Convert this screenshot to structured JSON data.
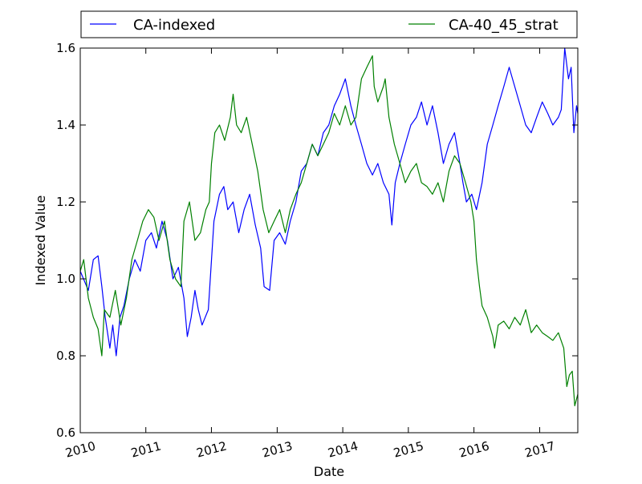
{
  "chart_data": {
    "type": "line",
    "title": "",
    "xlabel": "Date",
    "ylabel": "Indexed Value",
    "xlim": [
      "2010-01-01",
      "2017-08-01"
    ],
    "ylim": [
      0.6,
      1.6
    ],
    "x_ticks": [
      "2010",
      "2011",
      "2012",
      "2013",
      "2014",
      "2015",
      "2016",
      "2017"
    ],
    "y_ticks": [
      "0.6",
      "0.8",
      "1.0",
      "1.2",
      "1.4",
      "1.6"
    ],
    "grid": false,
    "legend": {
      "placement": "top, above plot",
      "columns": 2
    },
    "series": [
      {
        "name": "CA-indexed",
        "color": "#0000ff",
        "points": [
          [
            "2010-01-01",
            1.02
          ],
          [
            "2010-02-15",
            0.97
          ],
          [
            "2010-03-15",
            1.05
          ],
          [
            "2010-04-10",
            1.06
          ],
          [
            "2010-05-01",
            0.98
          ],
          [
            "2010-05-20",
            0.9
          ],
          [
            "2010-06-15",
            0.82
          ],
          [
            "2010-07-01",
            0.88
          ],
          [
            "2010-07-20",
            0.8
          ],
          [
            "2010-08-10",
            0.9
          ],
          [
            "2010-09-01",
            0.93
          ],
          [
            "2010-10-01",
            1.0
          ],
          [
            "2010-11-01",
            1.05
          ],
          [
            "2010-12-01",
            1.02
          ],
          [
            "2011-01-01",
            1.1
          ],
          [
            "2011-02-01",
            1.12
          ],
          [
            "2011-03-01",
            1.08
          ],
          [
            "2011-04-01",
            1.15
          ],
          [
            "2011-05-01",
            1.1
          ],
          [
            "2011-06-01",
            1.0
          ],
          [
            "2011-07-01",
            1.03
          ],
          [
            "2011-08-01",
            0.95
          ],
          [
            "2011-08-20",
            0.85
          ],
          [
            "2011-09-10",
            0.9
          ],
          [
            "2011-10-01",
            0.97
          ],
          [
            "2011-10-20",
            0.92
          ],
          [
            "2011-11-10",
            0.88
          ],
          [
            "2011-12-15",
            0.92
          ],
          [
            "2012-01-15",
            1.15
          ],
          [
            "2012-02-15",
            1.22
          ],
          [
            "2012-03-10",
            1.24
          ],
          [
            "2012-04-01",
            1.18
          ],
          [
            "2012-05-01",
            1.2
          ],
          [
            "2012-06-01",
            1.12
          ],
          [
            "2012-07-01",
            1.18
          ],
          [
            "2012-08-01",
            1.22
          ],
          [
            "2012-09-01",
            1.14
          ],
          [
            "2012-10-01",
            1.08
          ],
          [
            "2012-10-20",
            0.98
          ],
          [
            "2012-11-20",
            0.97
          ],
          [
            "2012-12-15",
            1.1
          ],
          [
            "2013-01-15",
            1.12
          ],
          [
            "2013-02-15",
            1.09
          ],
          [
            "2013-03-15",
            1.15
          ],
          [
            "2013-04-15",
            1.2
          ],
          [
            "2013-05-15",
            1.28
          ],
          [
            "2013-06-15",
            1.3
          ],
          [
            "2013-07-15",
            1.35
          ],
          [
            "2013-08-15",
            1.32
          ],
          [
            "2013-09-15",
            1.38
          ],
          [
            "2013-10-15",
            1.4
          ],
          [
            "2013-11-15",
            1.45
          ],
          [
            "2013-12-15",
            1.48
          ],
          [
            "2014-01-15",
            1.52
          ],
          [
            "2014-02-15",
            1.45
          ],
          [
            "2014-03-15",
            1.4
          ],
          [
            "2014-04-15",
            1.35
          ],
          [
            "2014-05-15",
            1.3
          ],
          [
            "2014-06-15",
            1.27
          ],
          [
            "2014-07-15",
            1.3
          ],
          [
            "2014-08-15",
            1.25
          ],
          [
            "2014-09-15",
            1.22
          ],
          [
            "2014-10-01",
            1.14
          ],
          [
            "2014-10-20",
            1.25
          ],
          [
            "2014-11-15",
            1.3
          ],
          [
            "2014-12-15",
            1.35
          ],
          [
            "2015-01-15",
            1.4
          ],
          [
            "2015-02-15",
            1.42
          ],
          [
            "2015-03-15",
            1.46
          ],
          [
            "2015-04-15",
            1.4
          ],
          [
            "2015-05-15",
            1.45
          ],
          [
            "2015-06-15",
            1.38
          ],
          [
            "2015-07-15",
            1.3
          ],
          [
            "2015-08-15",
            1.35
          ],
          [
            "2015-09-15",
            1.38
          ],
          [
            "2015-10-15",
            1.3
          ],
          [
            "2015-11-01",
            1.25
          ],
          [
            "2015-11-20",
            1.2
          ],
          [
            "2015-12-20",
            1.22
          ],
          [
            "2016-01-15",
            1.18
          ],
          [
            "2016-02-15",
            1.25
          ],
          [
            "2016-03-15",
            1.35
          ],
          [
            "2016-04-15",
            1.4
          ],
          [
            "2016-05-15",
            1.45
          ],
          [
            "2016-06-15",
            1.5
          ],
          [
            "2016-07-15",
            1.55
          ],
          [
            "2016-08-15",
            1.5
          ],
          [
            "2016-09-15",
            1.45
          ],
          [
            "2016-10-15",
            1.4
          ],
          [
            "2016-11-15",
            1.38
          ],
          [
            "2016-12-15",
            1.42
          ],
          [
            "2017-01-15",
            1.46
          ],
          [
            "2017-02-15",
            1.43
          ],
          [
            "2017-03-15",
            1.4
          ],
          [
            "2017-04-15",
            1.42
          ],
          [
            "2017-05-01",
            1.44
          ],
          [
            "2017-05-20",
            1.6
          ],
          [
            "2017-06-10",
            1.52
          ],
          [
            "2017-06-25",
            1.55
          ],
          [
            "2017-07-10",
            1.38
          ],
          [
            "2017-07-25",
            1.45
          ],
          [
            "2017-08-01",
            1.43
          ]
        ]
      },
      {
        "name": "CA-40_45_strat",
        "color": "#008000",
        "points": [
          [
            "2010-01-01",
            1.02
          ],
          [
            "2010-01-20",
            1.05
          ],
          [
            "2010-02-15",
            0.95
          ],
          [
            "2010-03-15",
            0.9
          ],
          [
            "2010-04-10",
            0.87
          ],
          [
            "2010-05-01",
            0.8
          ],
          [
            "2010-05-15",
            0.92
          ],
          [
            "2010-06-15",
            0.9
          ],
          [
            "2010-07-15",
            0.97
          ],
          [
            "2010-08-15",
            0.88
          ],
          [
            "2010-09-15",
            0.95
          ],
          [
            "2010-10-15",
            1.05
          ],
          [
            "2010-11-15",
            1.1
          ],
          [
            "2010-12-15",
            1.15
          ],
          [
            "2011-01-15",
            1.18
          ],
          [
            "2011-02-15",
            1.16
          ],
          [
            "2011-03-15",
            1.1
          ],
          [
            "2011-04-15",
            1.15
          ],
          [
            "2011-05-15",
            1.05
          ],
          [
            "2011-06-15",
            1.0
          ],
          [
            "2011-07-15",
            0.98
          ],
          [
            "2011-08-01",
            1.15
          ],
          [
            "2011-09-01",
            1.2
          ],
          [
            "2011-10-01",
            1.1
          ],
          [
            "2011-11-01",
            1.12
          ],
          [
            "2011-12-01",
            1.18
          ],
          [
            "2011-12-20",
            1.2
          ],
          [
            "2012-01-01",
            1.3
          ],
          [
            "2012-01-20",
            1.38
          ],
          [
            "2012-02-15",
            1.4
          ],
          [
            "2012-03-15",
            1.36
          ],
          [
            "2012-04-15",
            1.42
          ],
          [
            "2012-05-01",
            1.48
          ],
          [
            "2012-05-20",
            1.4
          ],
          [
            "2012-06-15",
            1.38
          ],
          [
            "2012-07-15",
            1.42
          ],
          [
            "2012-08-15",
            1.35
          ],
          [
            "2012-09-15",
            1.28
          ],
          [
            "2012-10-15",
            1.18
          ],
          [
            "2012-11-15",
            1.12
          ],
          [
            "2012-12-15",
            1.15
          ],
          [
            "2013-01-15",
            1.18
          ],
          [
            "2013-02-15",
            1.12
          ],
          [
            "2013-03-15",
            1.18
          ],
          [
            "2013-04-15",
            1.22
          ],
          [
            "2013-05-15",
            1.25
          ],
          [
            "2013-06-15",
            1.3
          ],
          [
            "2013-07-15",
            1.35
          ],
          [
            "2013-08-15",
            1.32
          ],
          [
            "2013-09-15",
            1.35
          ],
          [
            "2013-10-15",
            1.38
          ],
          [
            "2013-11-15",
            1.43
          ],
          [
            "2013-12-15",
            1.4
          ],
          [
            "2014-01-15",
            1.45
          ],
          [
            "2014-02-15",
            1.4
          ],
          [
            "2014-03-15",
            1.42
          ],
          [
            "2014-04-15",
            1.52
          ],
          [
            "2014-05-15",
            1.55
          ],
          [
            "2014-06-15",
            1.58
          ],
          [
            "2014-06-25",
            1.5
          ],
          [
            "2014-07-15",
            1.46
          ],
          [
            "2014-08-15",
            1.5
          ],
          [
            "2014-08-25",
            1.52
          ],
          [
            "2014-09-15",
            1.42
          ],
          [
            "2014-10-15",
            1.35
          ],
          [
            "2014-11-15",
            1.3
          ],
          [
            "2014-12-15",
            1.25
          ],
          [
            "2015-01-15",
            1.28
          ],
          [
            "2015-02-15",
            1.3
          ],
          [
            "2015-03-15",
            1.25
          ],
          [
            "2015-04-15",
            1.24
          ],
          [
            "2015-05-15",
            1.22
          ],
          [
            "2015-06-15",
            1.25
          ],
          [
            "2015-07-15",
            1.2
          ],
          [
            "2015-08-15",
            1.28
          ],
          [
            "2015-09-15",
            1.32
          ],
          [
            "2015-10-15",
            1.3
          ],
          [
            "2015-11-15",
            1.25
          ],
          [
            "2015-12-15",
            1.2
          ],
          [
            "2016-01-01",
            1.15
          ],
          [
            "2016-01-15",
            1.05
          ],
          [
            "2016-02-01",
            0.98
          ],
          [
            "2016-02-15",
            0.93
          ],
          [
            "2016-03-15",
            0.9
          ],
          [
            "2016-04-15",
            0.85
          ],
          [
            "2016-04-25",
            0.82
          ],
          [
            "2016-05-15",
            0.88
          ],
          [
            "2016-06-15",
            0.89
          ],
          [
            "2016-07-15",
            0.87
          ],
          [
            "2016-08-15",
            0.9
          ],
          [
            "2016-09-15",
            0.88
          ],
          [
            "2016-10-15",
            0.92
          ],
          [
            "2016-11-15",
            0.86
          ],
          [
            "2016-12-15",
            0.88
          ],
          [
            "2017-01-15",
            0.86
          ],
          [
            "2017-02-15",
            0.85
          ],
          [
            "2017-03-15",
            0.84
          ],
          [
            "2017-04-15",
            0.86
          ],
          [
            "2017-05-15",
            0.82
          ],
          [
            "2017-06-01",
            0.72
          ],
          [
            "2017-06-15",
            0.75
          ],
          [
            "2017-07-01",
            0.76
          ],
          [
            "2017-07-15",
            0.67
          ],
          [
            "2017-08-01",
            0.7
          ]
        ]
      }
    ]
  }
}
